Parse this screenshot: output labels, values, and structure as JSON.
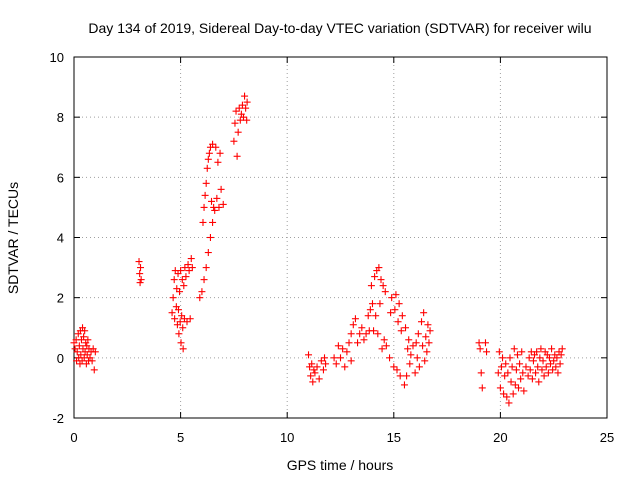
{
  "chart_data": {
    "type": "scatter",
    "title": "Day 134 of 2019, Sidereal Day-to-day VTEC variation (SDTVAR) for receiver wilu",
    "xlabel": "GPS time / hours",
    "ylabel": "SDTVAR / TECUs",
    "xlim": [
      0,
      25
    ],
    "ylim": [
      -2,
      10
    ],
    "xticks": [
      "0",
      "5",
      "10",
      "15",
      "20",
      "25"
    ],
    "yticks": [
      "-2",
      "0",
      "2",
      "4",
      "6",
      "8",
      "10"
    ],
    "grid": true,
    "marker": "plus",
    "color": "#ff0000",
    "series": [
      {
        "name": "SDTVAR",
        "points": [
          [
            0.0,
            0.5
          ],
          [
            0.05,
            0.3
          ],
          [
            0.1,
            0.6
          ],
          [
            0.12,
            -0.1
          ],
          [
            0.15,
            0.2
          ],
          [
            0.2,
            0.8
          ],
          [
            0.22,
            0.0
          ],
          [
            0.25,
            0.4
          ],
          [
            0.28,
            -0.2
          ],
          [
            0.3,
            0.9
          ],
          [
            0.32,
            0.1
          ],
          [
            0.35,
            0.6
          ],
          [
            0.38,
            -0.1
          ],
          [
            0.4,
            1.0
          ],
          [
            0.42,
            0.3
          ],
          [
            0.45,
            0.7
          ],
          [
            0.48,
            0.0
          ],
          [
            0.5,
            0.9
          ],
          [
            0.52,
            0.2
          ],
          [
            0.55,
            0.5
          ],
          [
            0.58,
            -0.2
          ],
          [
            0.6,
            0.4
          ],
          [
            0.62,
            0.1
          ],
          [
            0.65,
            0.6
          ],
          [
            0.68,
            -0.1
          ],
          [
            0.7,
            0.3
          ],
          [
            0.75,
            0.0
          ],
          [
            0.8,
            0.2
          ],
          [
            0.85,
            -0.1
          ],
          [
            0.9,
            0.3
          ],
          [
            0.95,
            -0.4
          ],
          [
            1.0,
            0.2
          ],
          [
            3.05,
            3.2
          ],
          [
            3.08,
            2.8
          ],
          [
            3.1,
            2.5
          ],
          [
            3.12,
            3.0
          ],
          [
            3.15,
            2.6
          ],
          [
            4.6,
            1.5
          ],
          [
            4.65,
            2.0
          ],
          [
            4.7,
            2.6
          ],
          [
            4.72,
            1.3
          ],
          [
            4.75,
            2.9
          ],
          [
            4.8,
            1.7
          ],
          [
            4.82,
            2.3
          ],
          [
            4.85,
            1.1
          ],
          [
            4.88,
            2.8
          ],
          [
            4.9,
            1.6
          ],
          [
            4.92,
            0.8
          ],
          [
            4.95,
            2.2
          ],
          [
            4.98,
            1.2
          ],
          [
            5.0,
            2.9
          ],
          [
            5.02,
            0.5
          ],
          [
            5.05,
            1.4
          ],
          [
            5.08,
            2.6
          ],
          [
            5.1,
            1.0
          ],
          [
            5.12,
            0.3
          ],
          [
            5.15,
            2.4
          ],
          [
            5.18,
            1.3
          ],
          [
            5.2,
            3.0
          ],
          [
            5.25,
            2.7
          ],
          [
            5.3,
            1.2
          ],
          [
            5.35,
            3.1
          ],
          [
            5.4,
            2.9
          ],
          [
            5.45,
            1.3
          ],
          [
            5.5,
            3.3
          ],
          [
            5.55,
            3.0
          ],
          [
            5.9,
            2.0
          ],
          [
            6.0,
            2.2
          ],
          [
            6.05,
            4.5
          ],
          [
            6.1,
            2.6
          ],
          [
            6.1,
            5.0
          ],
          [
            6.15,
            5.4
          ],
          [
            6.2,
            3.0
          ],
          [
            6.2,
            5.8
          ],
          [
            6.25,
            6.3
          ],
          [
            6.3,
            3.5
          ],
          [
            6.3,
            6.6
          ],
          [
            6.35,
            6.8
          ],
          [
            6.4,
            4.0
          ],
          [
            6.4,
            7.0
          ],
          [
            6.45,
            5.2
          ],
          [
            6.5,
            4.5
          ],
          [
            6.5,
            7.1
          ],
          [
            6.55,
            5.0
          ],
          [
            6.6,
            4.9
          ],
          [
            6.65,
            7.0
          ],
          [
            6.7,
            5.3
          ],
          [
            6.75,
            6.5
          ],
          [
            6.8,
            5.0
          ],
          [
            6.85,
            6.8
          ],
          [
            6.9,
            5.6
          ],
          [
            7.0,
            5.1
          ],
          [
            7.5,
            7.2
          ],
          [
            7.55,
            7.8
          ],
          [
            7.6,
            8.2
          ],
          [
            7.65,
            6.7
          ],
          [
            7.7,
            7.5
          ],
          [
            7.75,
            8.3
          ],
          [
            7.8,
            7.9
          ],
          [
            7.85,
            8.1
          ],
          [
            7.9,
            8.4
          ],
          [
            7.95,
            8.0
          ],
          [
            8.0,
            8.7
          ],
          [
            8.05,
            8.3
          ],
          [
            8.1,
            7.9
          ],
          [
            8.12,
            8.5
          ],
          [
            11.0,
            0.1
          ],
          [
            11.05,
            -0.3
          ],
          [
            11.1,
            -0.6
          ],
          [
            11.15,
            -0.2
          ],
          [
            11.2,
            -0.8
          ],
          [
            11.25,
            -0.4
          ],
          [
            11.3,
            -0.5
          ],
          [
            11.4,
            -0.3
          ],
          [
            11.5,
            -0.7
          ],
          [
            11.6,
            -0.1
          ],
          [
            11.7,
            -0.4
          ],
          [
            11.75,
            0.0
          ],
          [
            11.8,
            -0.2
          ],
          [
            12.2,
            0.0
          ],
          [
            12.3,
            -0.2
          ],
          [
            12.4,
            0.4
          ],
          [
            12.5,
            0.0
          ],
          [
            12.6,
            0.3
          ],
          [
            12.7,
            -0.3
          ],
          [
            12.8,
            0.2
          ],
          [
            12.9,
            0.5
          ],
          [
            13.0,
            -0.1
          ],
          [
            13.0,
            0.8
          ],
          [
            13.1,
            1.1
          ],
          [
            13.2,
            1.3
          ],
          [
            13.3,
            0.5
          ],
          [
            13.4,
            0.8
          ],
          [
            13.5,
            1.0
          ],
          [
            13.6,
            0.6
          ],
          [
            13.7,
            0.8
          ],
          [
            13.8,
            1.4
          ],
          [
            13.85,
            0.9
          ],
          [
            13.9,
            1.6
          ],
          [
            13.95,
            2.4
          ],
          [
            14.0,
            1.8
          ],
          [
            14.05,
            0.9
          ],
          [
            14.1,
            2.7
          ],
          [
            14.15,
            1.4
          ],
          [
            14.2,
            2.9
          ],
          [
            14.25,
            0.8
          ],
          [
            14.3,
            3.0
          ],
          [
            14.35,
            1.8
          ],
          [
            14.4,
            2.6
          ],
          [
            14.45,
            0.3
          ],
          [
            14.5,
            2.4
          ],
          [
            14.55,
            0.6
          ],
          [
            14.6,
            2.2
          ],
          [
            14.65,
            0.4
          ],
          [
            14.8,
            0.0
          ],
          [
            14.85,
            1.5
          ],
          [
            14.9,
            2.0
          ],
          [
            15.0,
            -0.3
          ],
          [
            15.05,
            1.6
          ],
          [
            15.1,
            2.1
          ],
          [
            15.15,
            -0.4
          ],
          [
            15.2,
            1.2
          ],
          [
            15.25,
            1.8
          ],
          [
            15.3,
            -0.6
          ],
          [
            15.35,
            0.9
          ],
          [
            15.4,
            1.4
          ],
          [
            15.5,
            -0.9
          ],
          [
            15.55,
            1.0
          ],
          [
            15.6,
            -0.6
          ],
          [
            15.65,
            0.3
          ],
          [
            15.7,
            0.6
          ],
          [
            15.75,
            -0.2
          ],
          [
            15.8,
            0.1
          ],
          [
            15.9,
            0.4
          ],
          [
            16.0,
            -0.5
          ],
          [
            16.05,
            0.5
          ],
          [
            16.1,
            0.0
          ],
          [
            16.15,
            0.8
          ],
          [
            16.2,
            -0.3
          ],
          [
            16.3,
            1.2
          ],
          [
            16.35,
            0.4
          ],
          [
            16.4,
            1.5
          ],
          [
            16.45,
            -0.1
          ],
          [
            16.5,
            0.7
          ],
          [
            16.55,
            0.2
          ],
          [
            16.6,
            1.1
          ],
          [
            16.65,
            0.5
          ],
          [
            16.7,
            0.9
          ],
          [
            19.0,
            0.5
          ],
          [
            19.05,
            0.3
          ],
          [
            19.1,
            -0.5
          ],
          [
            19.15,
            -1.0
          ],
          [
            19.3,
            0.5
          ],
          [
            19.35,
            0.2
          ],
          [
            19.9,
            -0.5
          ],
          [
            19.95,
            0.2
          ],
          [
            20.0,
            -1.0
          ],
          [
            20.05,
            -0.3
          ],
          [
            20.1,
            0.0
          ],
          [
            20.15,
            -1.2
          ],
          [
            20.2,
            -0.6
          ],
          [
            20.25,
            -0.2
          ],
          [
            20.3,
            -1.3
          ],
          [
            20.35,
            -0.5
          ],
          [
            20.4,
            -1.5
          ],
          [
            20.45,
            0.0
          ],
          [
            20.5,
            -0.8
          ],
          [
            20.55,
            -0.3
          ],
          [
            20.6,
            -1.2
          ],
          [
            20.65,
            0.3
          ],
          [
            20.7,
            -0.9
          ],
          [
            20.75,
            -0.4
          ],
          [
            20.8,
            0.1
          ],
          [
            20.85,
            -1.0
          ],
          [
            20.9,
            -0.2
          ],
          [
            20.95,
            -0.7
          ],
          [
            21.0,
            0.2
          ],
          [
            21.05,
            -0.5
          ],
          [
            21.1,
            -1.1
          ],
          [
            21.2,
            -0.3
          ],
          [
            21.3,
            -0.6
          ],
          [
            21.35,
            0.0
          ],
          [
            21.4,
            -0.4
          ],
          [
            21.45,
            0.2
          ],
          [
            21.5,
            -0.7
          ],
          [
            21.55,
            -0.1
          ],
          [
            21.6,
            0.1
          ],
          [
            21.65,
            -0.5
          ],
          [
            21.7,
            0.2
          ],
          [
            21.75,
            -0.3
          ],
          [
            21.8,
            -0.8
          ],
          [
            21.85,
            0.0
          ],
          [
            21.9,
            0.3
          ],
          [
            21.95,
            -0.4
          ],
          [
            22.0,
            -0.1
          ],
          [
            22.05,
            -0.6
          ],
          [
            22.1,
            0.2
          ],
          [
            22.15,
            -0.3
          ],
          [
            22.2,
            0.1
          ],
          [
            22.25,
            -0.5
          ],
          [
            22.3,
            0.0
          ],
          [
            22.35,
            -0.2
          ],
          [
            22.4,
            0.3
          ],
          [
            22.45,
            -0.4
          ],
          [
            22.5,
            -0.1
          ],
          [
            22.55,
            0.1
          ],
          [
            22.6,
            -0.3
          ],
          [
            22.65,
            0.0
          ],
          [
            22.7,
            -0.5
          ],
          [
            22.75,
            0.2
          ],
          [
            22.8,
            -0.2
          ],
          [
            22.85,
            0.1
          ],
          [
            22.9,
            0.3
          ]
        ]
      }
    ]
  }
}
